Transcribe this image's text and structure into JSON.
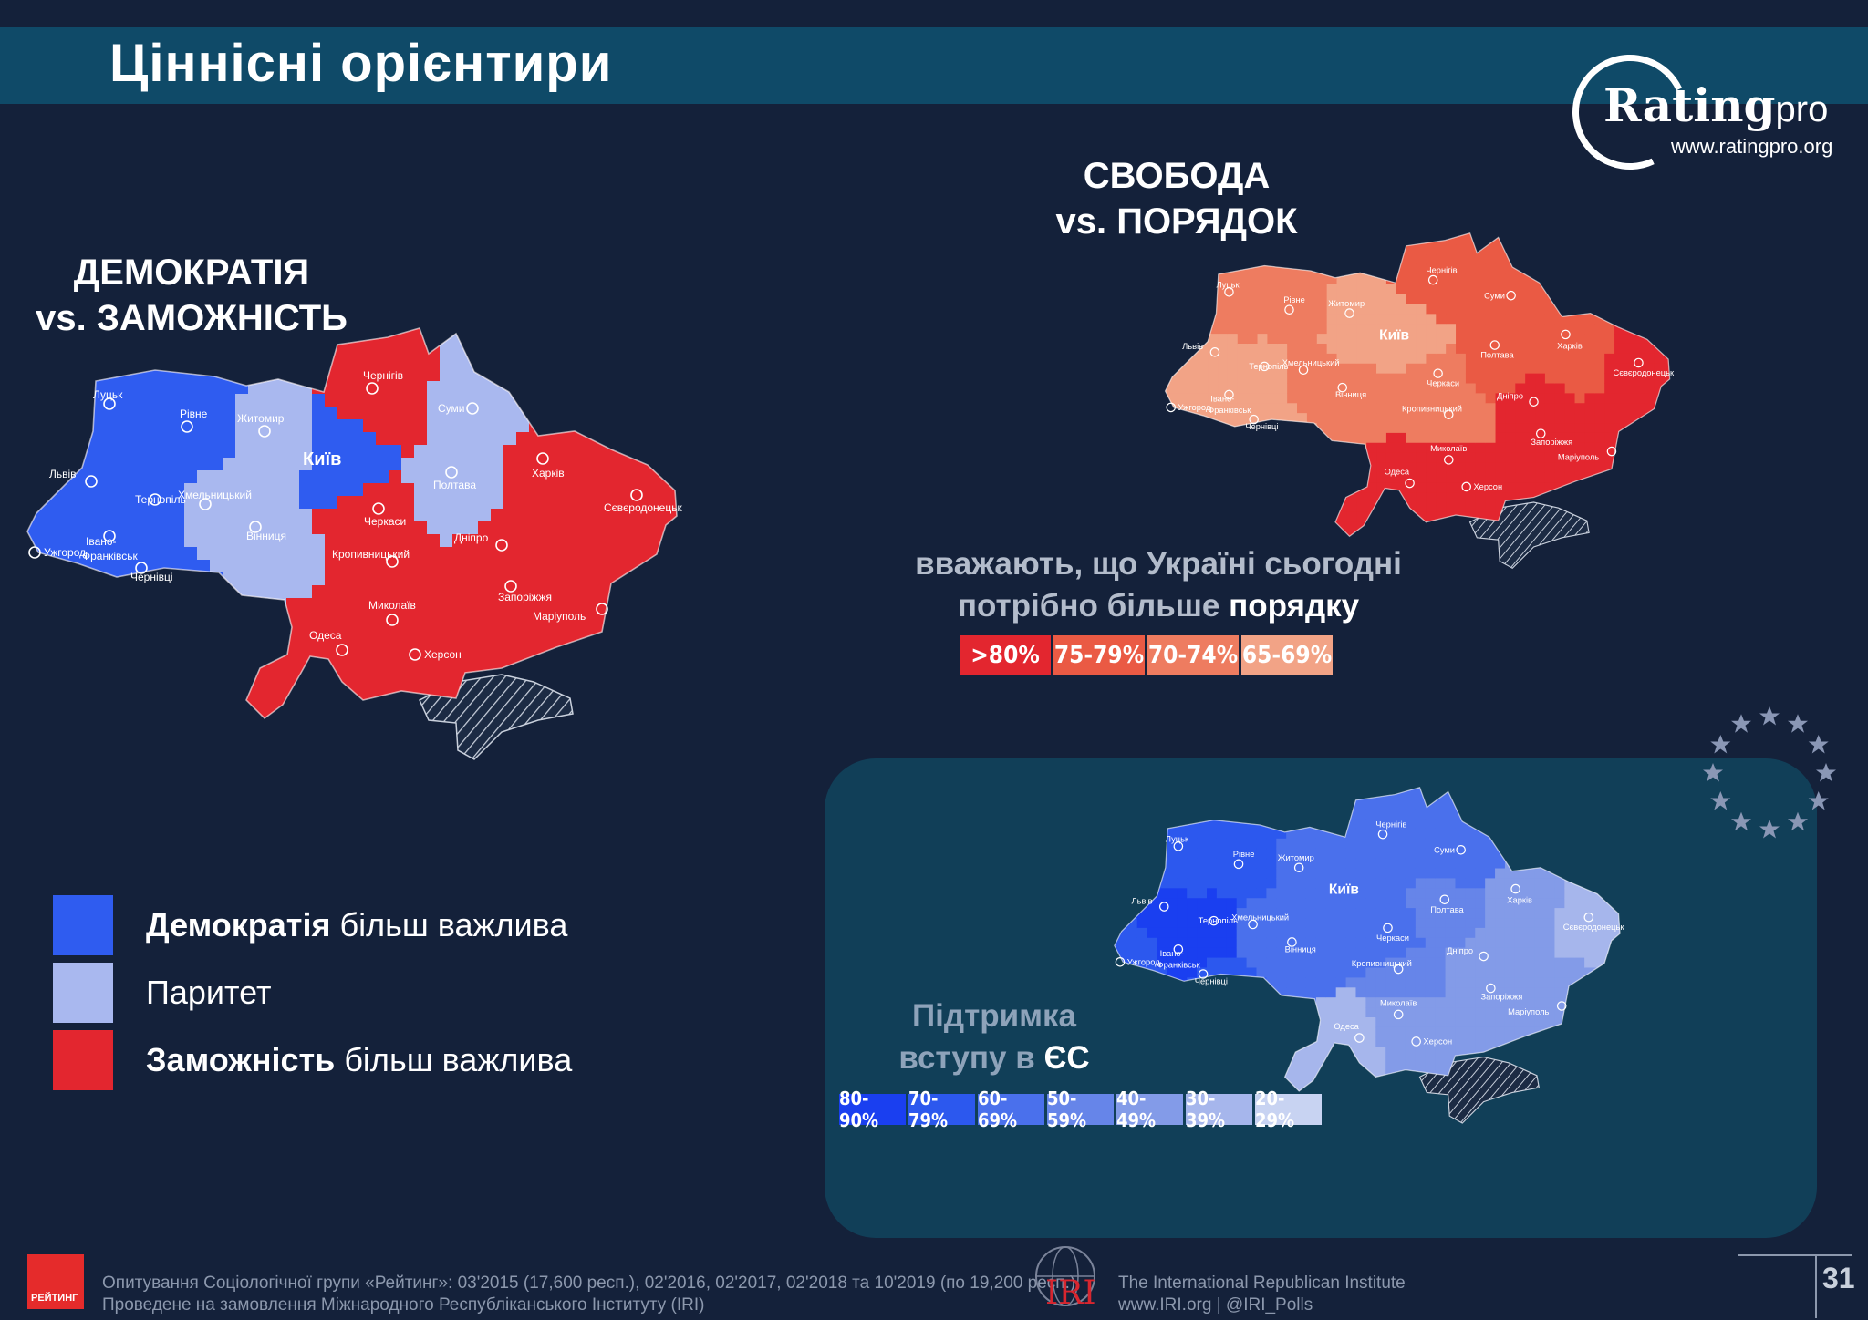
{
  "page_title": "Ціннісні орієнтири",
  "logo": {
    "word": "Rating",
    "suffix": "pro",
    "url": "www.ratingpro.org"
  },
  "democracy_block": {
    "title_line1": "ДЕМОКРАТІЯ",
    "title_line2": "vs. ЗАМОЖНІСТЬ",
    "legend": [
      {
        "bold": "Демократія",
        "rest": " більш важлива",
        "color": "#2f5cf0"
      },
      {
        "bold": "",
        "rest": "Паритет",
        "color": "#a9b8ef"
      },
      {
        "bold": "Заможність",
        "rest": " більш важлива",
        "color": "#e3262f"
      }
    ]
  },
  "freedom_block": {
    "title_line1": "СВОБОДА",
    "title_line2": "vs. ПОРЯДОК",
    "note_line1": "вважають, що Україні сьогодні",
    "note_line2_prefix": "потрібно більше ",
    "note_line2_highlight": "порядку",
    "scale": [
      {
        "label": ">80%",
        "color": "#e3262f"
      },
      {
        "label": "75-79%",
        "color": "#ea5a44"
      },
      {
        "label": "70-74%",
        "color": "#ee7c60"
      },
      {
        "label": "65-69%",
        "color": "#f2a386"
      }
    ]
  },
  "eu_block": {
    "title_line1": "Підтримка",
    "title_line2_prefix": "вступу в ",
    "title_line2_highlight": "ЄС",
    "scale": [
      {
        "label": "80-90%",
        "color": "#1a3ff0"
      },
      {
        "label": "70-79%",
        "color": "#2c58ee"
      },
      {
        "label": "60-69%",
        "color": "#4a70ec"
      },
      {
        "label": "50-59%",
        "color": "#6685e9"
      },
      {
        "label": "40-49%",
        "color": "#839be8"
      },
      {
        "label": "30-39%",
        "color": "#a6b6ec"
      },
      {
        "label": "20-29%",
        "color": "#c8d3f2"
      }
    ]
  },
  "cities": {
    "lutsk": "Луцьк",
    "rivne": "Рівне",
    "zhytomyr": "Житомир",
    "chernihiv": "Чернігів",
    "sumy": "Суми",
    "kyiv": "Київ",
    "lviv": "Львів",
    "ternopil": "Тернопіль",
    "khmelnytskyi": "Хмельницький",
    "ivano": "Івано-",
    "frankivsk": "Франківськ",
    "uzhhorod": "Ужгород",
    "chernivtsi": "Чернівці",
    "vinnytsia": "Вінниця",
    "cherkasy": "Черкаси",
    "poltava": "Полтава",
    "kharkiv": "Харків",
    "sievierodonetsk": "Сєвєродонецьк",
    "dnipro": "Дніпро",
    "kropyvnytskyi": "Кропивницький",
    "zaporizhzhia": "Запоріжжя",
    "mariupol": "Маріуполь",
    "mykolaiv": "Миколаїв",
    "odesa": "Одеса",
    "kherson": "Херсон"
  },
  "map_colors": {
    "democracy": {
      "west": "#2f5cf0",
      "parity": "#a9b8ef",
      "wealth": "#e3262f"
    },
    "freedom": {
      "light": "#f2a386",
      "mid": "#ee7c60",
      "strong": "#ea5a44",
      "max": "#e3262f"
    },
    "eu": {
      "top": "#1a3ff0",
      "high": "#2c58ee",
      "mid": "#4a70ec",
      "low": "#6685e9",
      "lower": "#839be8",
      "least": "#a6b6ec"
    }
  },
  "footer": {
    "survey_line1": "Опитування Соціологічної групи «Рейтинг»: 03'2015 (17,600 респ.), 02'2016, 02'2017, 02'2018 та 10'2019 (по 19,200 респ.).",
    "survey_line2": "Проведене на замовлення Міжнародного Республіканського Інституту (IRI)",
    "rating_logo": "РЕЙТИНГ",
    "iri_logo": "IRI",
    "iri_line1": "The International Republican Institute",
    "iri_line2": "www.IRI.org | @IRI_Polls",
    "page_number": "31"
  }
}
